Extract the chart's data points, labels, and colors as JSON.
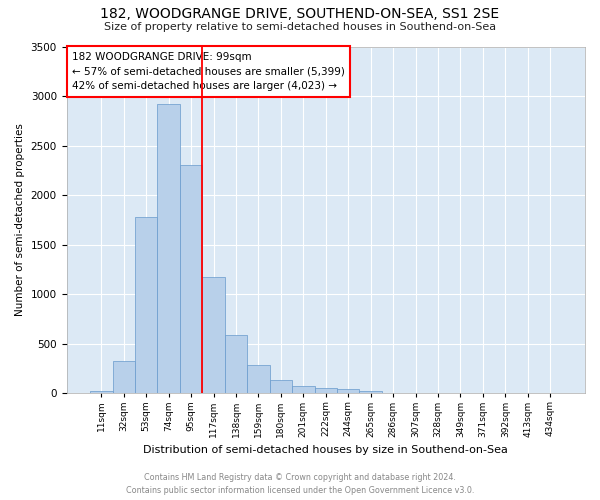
{
  "title": "182, WOODGRANGE DRIVE, SOUTHEND-ON-SEA, SS1 2SE",
  "subtitle": "Size of property relative to semi-detached houses in Southend-on-Sea",
  "xlabel": "Distribution of semi-detached houses by size in Southend-on-Sea",
  "ylabel": "Number of semi-detached properties",
  "footer": "Contains HM Land Registry data © Crown copyright and database right 2024.\nContains public sector information licensed under the Open Government Licence v3.0.",
  "bar_values": [
    25,
    330,
    1775,
    2920,
    2300,
    1175,
    590,
    290,
    130,
    75,
    55,
    45,
    25,
    5,
    2,
    2,
    1,
    1,
    0,
    0,
    0
  ],
  "bar_labels": [
    "11sqm",
    "32sqm",
    "53sqm",
    "74sqm",
    "95sqm",
    "117sqm",
    "138sqm",
    "159sqm",
    "180sqm",
    "201sqm",
    "222sqm",
    "244sqm",
    "265sqm",
    "286sqm",
    "307sqm",
    "328sqm",
    "349sqm",
    "371sqm",
    "392sqm",
    "413sqm",
    "434sqm"
  ],
  "bar_color": "#b8d0ea",
  "bar_edge_color": "#6699cc",
  "bg_color": "#dce9f5",
  "grid_color": "#ffffff",
  "annotation_line1": "182 WOODGRANGE DRIVE: 99sqm",
  "annotation_line2": "← 57% of semi-detached houses are smaller (5,399)",
  "annotation_line3": "42% of semi-detached houses are larger (4,023) →",
  "ylim": [
    0,
    3500
  ],
  "yticks": [
    0,
    500,
    1000,
    1500,
    2000,
    2500,
    3000,
    3500
  ],
  "red_line_x": 4.5,
  "fig_bg": "#ffffff"
}
